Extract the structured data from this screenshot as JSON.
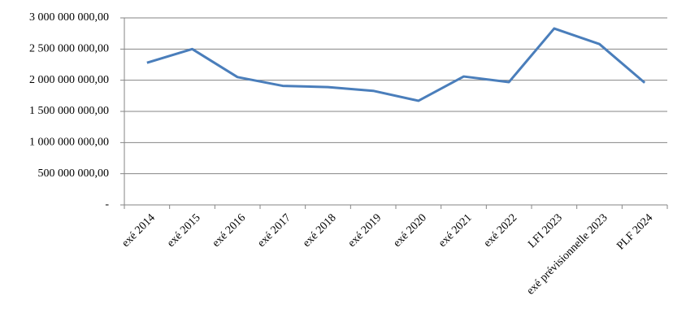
{
  "chart_data": {
    "type": "line",
    "categories": [
      "exé 2014",
      "exé 2015",
      "exé 2016",
      "exé 2017",
      "exé 2018",
      "exé 2019",
      "exé 2020",
      "exé 2021",
      "exé 2022",
      "LFI 2023",
      "exé prévisionnelle 2023",
      "PLF 2024"
    ],
    "series": [
      {
        "color": "#4a7ebb",
        "values": [
          2280000000,
          2500000000,
          2050000000,
          1910000000,
          1890000000,
          1830000000,
          1670000000,
          2060000000,
          1970000000,
          2830000000,
          2580000000,
          1960000000
        ]
      }
    ],
    "ylim": [
      0,
      3000000000
    ],
    "yticks": [
      {
        "value": 0,
        "label": "-"
      },
      {
        "value": 500000000,
        "label": "500 000 000,00"
      },
      {
        "value": 1000000000,
        "label": "1 000 000 000,00"
      },
      {
        "value": 1500000000,
        "label": "1 500 000 000,00"
      },
      {
        "value": 2000000000,
        "label": "2 000 000 000,00"
      },
      {
        "value": 2500000000,
        "label": "2 500 000 000,00"
      },
      {
        "value": 3000000000,
        "label": "3 000 000 000,00"
      }
    ],
    "grid": true
  }
}
